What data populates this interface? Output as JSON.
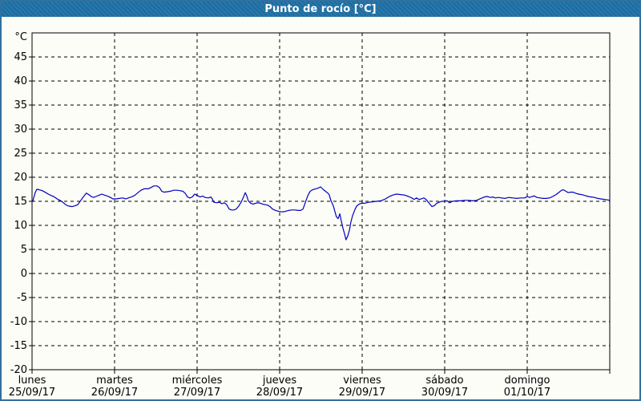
{
  "title": "Punto de rocío [°C]",
  "colors": {
    "frame": "#31709f",
    "titlebar_bg": "#1d6fa5",
    "titlebar_text": "#ffffff",
    "background": "#fcfdf7",
    "axis": "#000000",
    "grid": "#000000",
    "line": "#0000c0"
  },
  "chart_data": {
    "type": "line",
    "title": "Punto de rocío [°C]",
    "ylabel": "°C",
    "xlabel": "",
    "ylim": [
      -20,
      50
    ],
    "y_ticks": [
      45,
      40,
      35,
      30,
      25,
      20,
      15,
      10,
      5,
      0,
      -5,
      -10,
      -15,
      -20
    ],
    "grid": "dashed",
    "legend_position": "none",
    "x_span_hours": 168,
    "x_days": [
      {
        "name": "lunes",
        "date": "25/09/17"
      },
      {
        "name": "martes",
        "date": "26/09/17"
      },
      {
        "name": "miércoles",
        "date": "27/09/17"
      },
      {
        "name": "jueves",
        "date": "28/09/17"
      },
      {
        "name": "viernes",
        "date": "29/09/17"
      },
      {
        "name": "sábado",
        "date": "30/09/17"
      },
      {
        "name": "domingo",
        "date": "01/10/17"
      }
    ],
    "series": [
      {
        "name": "Punto de rocío",
        "color": "#0000c0",
        "points": [
          [
            0.2,
            15.0
          ],
          [
            0.9,
            16.8
          ],
          [
            1.4,
            17.5
          ],
          [
            2.1,
            17.4
          ],
          [
            3,
            17.2
          ],
          [
            4,
            16.8
          ],
          [
            4.7,
            16.5
          ],
          [
            5.6,
            16.2
          ],
          [
            6.5,
            15.9
          ],
          [
            7.5,
            15.4
          ],
          [
            8.4,
            15.1
          ],
          [
            9.1,
            14.7
          ],
          [
            10,
            14.2
          ],
          [
            10.7,
            14.0
          ],
          [
            11.7,
            13.9
          ],
          [
            12.6,
            14.1
          ],
          [
            13.3,
            14.3
          ],
          [
            14.2,
            15.2
          ],
          [
            14.9,
            15.9
          ],
          [
            15.8,
            16.7
          ],
          [
            16.5,
            16.4
          ],
          [
            17.2,
            16.0
          ],
          [
            17.9,
            15.8
          ],
          [
            18.6,
            16.0
          ],
          [
            19.6,
            16.3
          ],
          [
            20.3,
            16.5
          ],
          [
            21,
            16.3
          ],
          [
            21.9,
            16.1
          ],
          [
            22.8,
            15.8
          ],
          [
            23.5,
            15.5
          ],
          [
            24.5,
            15.5
          ],
          [
            25.4,
            15.6
          ],
          [
            26.3,
            15.7
          ],
          [
            27.3,
            15.5
          ],
          [
            28,
            15.7
          ],
          [
            28.9,
            15.9
          ],
          [
            29.8,
            16.2
          ],
          [
            30.8,
            16.8
          ],
          [
            31.7,
            17.3
          ],
          [
            32.6,
            17.6
          ],
          [
            33.8,
            17.6
          ],
          [
            34.7,
            17.9
          ],
          [
            35.4,
            18.2
          ],
          [
            36.3,
            18.2
          ],
          [
            37,
            17.9
          ],
          [
            37.7,
            17.1
          ],
          [
            38.4,
            16.9
          ],
          [
            39.4,
            17.0
          ],
          [
            40.3,
            17.1
          ],
          [
            41.2,
            17.3
          ],
          [
            42.2,
            17.3
          ],
          [
            43.1,
            17.2
          ],
          [
            43.8,
            17.1
          ],
          [
            44.5,
            16.7
          ],
          [
            45.2,
            15.9
          ],
          [
            45.9,
            15.7
          ],
          [
            46.6,
            15.9
          ],
          [
            47.3,
            16.5
          ],
          [
            48,
            16.2
          ],
          [
            48.9,
            15.9
          ],
          [
            49.6,
            16.1
          ],
          [
            50.3,
            15.8
          ],
          [
            51.3,
            15.7
          ],
          [
            52,
            15.9
          ],
          [
            52.4,
            15.5
          ],
          [
            52.9,
            14.8
          ],
          [
            53.8,
            14.7
          ],
          [
            54.5,
            14.8
          ],
          [
            55.2,
            14.5
          ],
          [
            55.9,
            14.7
          ],
          [
            56.6,
            14.3
          ],
          [
            57.3,
            13.4
          ],
          [
            58,
            13.2
          ],
          [
            58.7,
            13.2
          ],
          [
            59.4,
            13.4
          ],
          [
            60.1,
            14.0
          ],
          [
            60.8,
            14.8
          ],
          [
            61.5,
            15.9
          ],
          [
            62,
            16.8
          ],
          [
            62.4,
            16.2
          ],
          [
            62.9,
            15.1
          ],
          [
            63.6,
            14.6
          ],
          [
            64.3,
            14.4
          ],
          [
            65,
            14.6
          ],
          [
            65.7,
            14.7
          ],
          [
            66.4,
            14.6
          ],
          [
            67.1,
            14.4
          ],
          [
            67.8,
            14.3
          ],
          [
            68.5,
            14.2
          ],
          [
            69.2,
            13.9
          ],
          [
            69.9,
            13.4
          ],
          [
            70.8,
            13.1
          ],
          [
            71.8,
            12.9
          ],
          [
            72.7,
            12.8
          ],
          [
            73.6,
            12.9
          ],
          [
            74.6,
            13.1
          ],
          [
            75.5,
            13.2
          ],
          [
            76.4,
            13.2
          ],
          [
            77.4,
            13.1
          ],
          [
            78.1,
            13.1
          ],
          [
            78.8,
            13.4
          ],
          [
            79.5,
            14.8
          ],
          [
            80.2,
            16.2
          ],
          [
            80.9,
            17.1
          ],
          [
            81.6,
            17.4
          ],
          [
            82.5,
            17.6
          ],
          [
            83.4,
            17.8
          ],
          [
            83.9,
            18.0
          ],
          [
            84.6,
            17.5
          ],
          [
            85.3,
            17.1
          ],
          [
            86,
            16.7
          ],
          [
            86.4,
            16.4
          ],
          [
            86.9,
            15.2
          ],
          [
            87.6,
            14.1
          ],
          [
            88.1,
            12.8
          ],
          [
            88.5,
            11.8
          ],
          [
            89,
            11.4
          ],
          [
            89.5,
            12.4
          ],
          [
            89.9,
            11.0
          ],
          [
            90.4,
            9.4
          ],
          [
            90.9,
            8.2
          ],
          [
            91.3,
            7.0
          ],
          [
            91.8,
            7.8
          ],
          [
            92.3,
            9.0
          ],
          [
            92.7,
            10.6
          ],
          [
            93.2,
            12.0
          ],
          [
            93.9,
            13.3
          ],
          [
            94.4,
            14.0
          ],
          [
            95.1,
            14.4
          ],
          [
            95.8,
            14.6
          ],
          [
            96.7,
            14.6
          ],
          [
            97.9,
            14.8
          ],
          [
            99,
            14.9
          ],
          [
            100.2,
            15.0
          ],
          [
            101.4,
            15.1
          ],
          [
            102.5,
            15.4
          ],
          [
            103.7,
            15.9
          ],
          [
            104.9,
            16.3
          ],
          [
            106,
            16.5
          ],
          [
            107.2,
            16.4
          ],
          [
            108.3,
            16.3
          ],
          [
            109.5,
            16.0
          ],
          [
            110.4,
            15.7
          ],
          [
            111.1,
            15.4
          ],
          [
            111.8,
            15.7
          ],
          [
            112.5,
            15.4
          ],
          [
            113.2,
            15.5
          ],
          [
            113.9,
            15.7
          ],
          [
            114.6,
            15.4
          ],
          [
            115.6,
            14.5
          ],
          [
            116.3,
            13.9
          ],
          [
            117,
            14.1
          ],
          [
            117.7,
            14.6
          ],
          [
            118.4,
            14.8
          ],
          [
            119.1,
            15.0
          ],
          [
            119.8,
            15.0
          ],
          [
            120.7,
            15.1
          ],
          [
            121.4,
            14.7
          ],
          [
            122.3,
            15.0
          ],
          [
            123.5,
            15.1
          ],
          [
            124.7,
            15.1
          ],
          [
            125.8,
            15.2
          ],
          [
            127,
            15.2
          ],
          [
            128.2,
            15.1
          ],
          [
            129.3,
            15.2
          ],
          [
            130.5,
            15.6
          ],
          [
            131.6,
            15.9
          ],
          [
            132.3,
            16.0
          ],
          [
            133.3,
            15.8
          ],
          [
            134,
            15.9
          ],
          [
            134.7,
            15.7
          ],
          [
            135.6,
            15.8
          ],
          [
            136.5,
            15.7
          ],
          [
            137.5,
            15.6
          ],
          [
            138.6,
            15.8
          ],
          [
            139.8,
            15.7
          ],
          [
            141,
            15.6
          ],
          [
            142.1,
            15.7
          ],
          [
            143.3,
            15.7
          ],
          [
            144,
            16.0
          ],
          [
            144.7,
            15.8
          ],
          [
            145.4,
            16.0
          ],
          [
            146.1,
            16.1
          ],
          [
            146.8,
            15.8
          ],
          [
            147.7,
            15.7
          ],
          [
            148.6,
            15.6
          ],
          [
            149.6,
            15.6
          ],
          [
            150.5,
            15.7
          ],
          [
            151.4,
            16.0
          ],
          [
            152.4,
            16.4
          ],
          [
            153.3,
            16.9
          ],
          [
            154,
            17.3
          ],
          [
            154.5,
            17.4
          ],
          [
            155.2,
            17.1
          ],
          [
            155.9,
            16.8
          ],
          [
            156.6,
            16.9
          ],
          [
            157.3,
            16.9
          ],
          [
            158,
            16.7
          ],
          [
            158.9,
            16.5
          ],
          [
            159.8,
            16.4
          ],
          [
            160.8,
            16.2
          ],
          [
            161.7,
            16.0
          ],
          [
            162.6,
            15.9
          ],
          [
            163.6,
            15.8
          ],
          [
            164.5,
            15.6
          ],
          [
            165.4,
            15.5
          ],
          [
            166.4,
            15.4
          ],
          [
            167.3,
            15.3
          ],
          [
            168,
            15.2
          ]
        ]
      }
    ]
  }
}
